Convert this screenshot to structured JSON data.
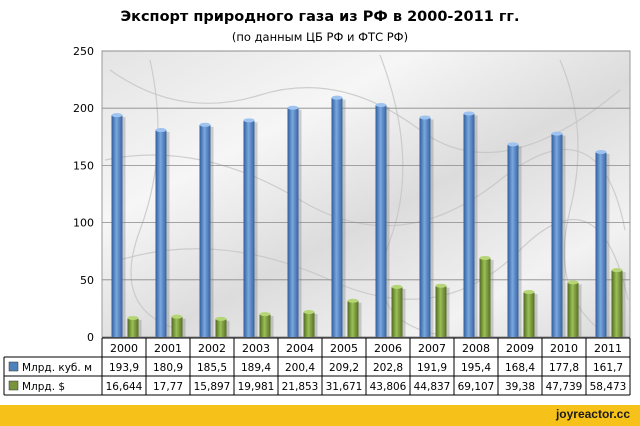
{
  "chart_data": {
    "type": "bar",
    "title": "Экспорт природного газа из РФ в 2000-2011 гг.",
    "subtitle": "(по данным ЦБ РФ и ФТС РФ)",
    "categories": [
      "2000",
      "2001",
      "2002",
      "2003",
      "2004",
      "2005",
      "2006",
      "2007",
      "2008",
      "2009",
      "2010",
      "2011"
    ],
    "series": [
      {
        "name": "Млрд. куб. м",
        "color": "#4f81bd",
        "values": [
          193.9,
          180.9,
          185.5,
          189.4,
          200.4,
          209.2,
          202.8,
          191.9,
          195.4,
          168.4,
          177.8,
          161.7
        ],
        "labels": [
          "193,9",
          "180,9",
          "185,5",
          "189,4",
          "200,4",
          "209,2",
          "202,8",
          "191,9",
          "195,4",
          "168,4",
          "177,8",
          "161,7"
        ]
      },
      {
        "name": "Млрд. $",
        "color": "#77933c",
        "values": [
          16.644,
          17.77,
          15.897,
          19.981,
          21.853,
          31.671,
          43.806,
          44.837,
          69.107,
          39.38,
          47.739,
          58.473
        ],
        "labels": [
          "16,644",
          "17,77",
          "15,897",
          "19,981",
          "21,853",
          "31,671",
          "43,806",
          "44,837",
          "69,107",
          "39,38",
          "47,739",
          "58,473"
        ]
      }
    ],
    "ylim": [
      0,
      250
    ],
    "yticks": [
      "0",
      "50",
      "100",
      "150",
      "200",
      "250"
    ],
    "grid": true,
    "legend": "data-table"
  },
  "watermark": "joyreactor.cc"
}
